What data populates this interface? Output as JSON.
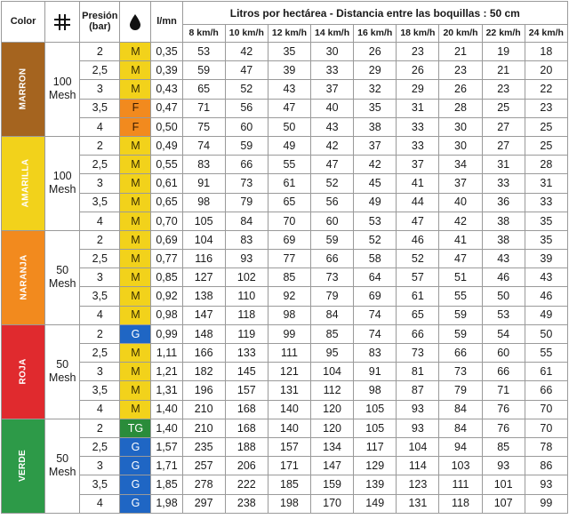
{
  "header": {
    "color": "Color",
    "presion": "Presión\n(bar)",
    "flow": "l/mn",
    "title": "Litros por hectárea - Distancia entre las boquillas : 50 cm",
    "speeds": [
      "8 km/h",
      "10 km/h",
      "12 km/h",
      "14 km/h",
      "16 km/h",
      "18 km/h",
      "20 km/h",
      "22 km/h",
      "24 km/h"
    ],
    "icons": [
      "grid-filter-icon",
      "drop-icon"
    ]
  },
  "colors": {
    "MARRON": "#a5641f",
    "AMARILLA": "#f2d21b",
    "NARANJA": "#f28a1e",
    "ROJA": "#e02a2e",
    "VERDE": "#2d9a48",
    "M": "#f2d21b",
    "F": "#f28a1e",
    "G": "#1f66c4",
    "TG": "#2a8c3a"
  },
  "groups": [
    {
      "name": "MARRON",
      "mesh": "100\nMesh",
      "rows": [
        {
          "p": "2",
          "t": "M",
          "f": "0,35",
          "v": [
            "53",
            "42",
            "35",
            "30",
            "26",
            "23",
            "21",
            "19",
            "18"
          ]
        },
        {
          "p": "2,5",
          "t": "M",
          "f": "0,39",
          "v": [
            "59",
            "47",
            "39",
            "33",
            "29",
            "26",
            "23",
            "21",
            "20"
          ]
        },
        {
          "p": "3",
          "t": "M",
          "f": "0,43",
          "v": [
            "65",
            "52",
            "43",
            "37",
            "32",
            "29",
            "26",
            "23",
            "22"
          ]
        },
        {
          "p": "3,5",
          "t": "F",
          "f": "0,47",
          "v": [
            "71",
            "56",
            "47",
            "40",
            "35",
            "31",
            "28",
            "25",
            "23"
          ]
        },
        {
          "p": "4",
          "t": "F",
          "f": "0,50",
          "v": [
            "75",
            "60",
            "50",
            "43",
            "38",
            "33",
            "30",
            "27",
            "25"
          ]
        }
      ]
    },
    {
      "name": "AMARILLA",
      "mesh": "100\nMesh",
      "rows": [
        {
          "p": "2",
          "t": "M",
          "f": "0,49",
          "v": [
            "74",
            "59",
            "49",
            "42",
            "37",
            "33",
            "30",
            "27",
            "25"
          ]
        },
        {
          "p": "2,5",
          "t": "M",
          "f": "0,55",
          "v": [
            "83",
            "66",
            "55",
            "47",
            "42",
            "37",
            "34",
            "31",
            "28"
          ]
        },
        {
          "p": "3",
          "t": "M",
          "f": "0,61",
          "v": [
            "91",
            "73",
            "61",
            "52",
            "45",
            "41",
            "37",
            "33",
            "31"
          ]
        },
        {
          "p": "3,5",
          "t": "M",
          "f": "0,65",
          "v": [
            "98",
            "79",
            "65",
            "56",
            "49",
            "44",
            "40",
            "36",
            "33"
          ]
        },
        {
          "p": "4",
          "t": "M",
          "f": "0,70",
          "v": [
            "105",
            "84",
            "70",
            "60",
            "53",
            "47",
            "42",
            "38",
            "35"
          ]
        }
      ]
    },
    {
      "name": "NARANJA",
      "mesh": "50\nMesh",
      "rows": [
        {
          "p": "2",
          "t": "M",
          "f": "0,69",
          "v": [
            "104",
            "83",
            "69",
            "59",
            "52",
            "46",
            "41",
            "38",
            "35"
          ]
        },
        {
          "p": "2,5",
          "t": "M",
          "f": "0,77",
          "v": [
            "116",
            "93",
            "77",
            "66",
            "58",
            "52",
            "47",
            "43",
            "39"
          ]
        },
        {
          "p": "3",
          "t": "M",
          "f": "0,85",
          "v": [
            "127",
            "102",
            "85",
            "73",
            "64",
            "57",
            "51",
            "46",
            "43"
          ]
        },
        {
          "p": "3,5",
          "t": "M",
          "f": "0,92",
          "v": [
            "138",
            "110",
            "92",
            "79",
            "69",
            "61",
            "55",
            "50",
            "46"
          ]
        },
        {
          "p": "4",
          "t": "M",
          "f": "0,98",
          "v": [
            "147",
            "118",
            "98",
            "84",
            "74",
            "65",
            "59",
            "53",
            "49"
          ]
        }
      ]
    },
    {
      "name": "ROJA",
      "mesh": "50\nMesh",
      "rows": [
        {
          "p": "2",
          "t": "G",
          "f": "0,99",
          "v": [
            "148",
            "119",
            "99",
            "85",
            "74",
            "66",
            "59",
            "54",
            "50"
          ]
        },
        {
          "p": "2,5",
          "t": "M",
          "f": "1,11",
          "v": [
            "166",
            "133",
            "111",
            "95",
            "83",
            "73",
            "66",
            "60",
            "55"
          ]
        },
        {
          "p": "3",
          "t": "M",
          "f": "1,21",
          "v": [
            "182",
            "145",
            "121",
            "104",
            "91",
            "81",
            "73",
            "66",
            "61"
          ]
        },
        {
          "p": "3,5",
          "t": "M",
          "f": "1,31",
          "v": [
            "196",
            "157",
            "131",
            "112",
            "98",
            "87",
            "79",
            "71",
            "66"
          ]
        },
        {
          "p": "4",
          "t": "M",
          "f": "1,40",
          "v": [
            "210",
            "168",
            "140",
            "120",
            "105",
            "93",
            "84",
            "76",
            "70"
          ]
        }
      ]
    },
    {
      "name": "VERDE",
      "mesh": "50\nMesh",
      "rows": [
        {
          "p": "2",
          "t": "TG",
          "f": "1,40",
          "v": [
            "210",
            "168",
            "140",
            "120",
            "105",
            "93",
            "84",
            "76",
            "70"
          ]
        },
        {
          "p": "2,5",
          "t": "G",
          "f": "1,57",
          "v": [
            "235",
            "188",
            "157",
            "134",
            "117",
            "104",
            "94",
            "85",
            "78"
          ]
        },
        {
          "p": "3",
          "t": "G",
          "f": "1,71",
          "v": [
            "257",
            "206",
            "171",
            "147",
            "129",
            "114",
            "103",
            "93",
            "86"
          ]
        },
        {
          "p": "3,5",
          "t": "G",
          "f": "1,85",
          "v": [
            "278",
            "222",
            "185",
            "159",
            "139",
            "123",
            "111",
            "101",
            "93"
          ]
        },
        {
          "p": "4",
          "t": "G",
          "f": "1,98",
          "v": [
            "297",
            "238",
            "198",
            "170",
            "149",
            "131",
            "118",
            "107",
            "99"
          ]
        }
      ]
    }
  ]
}
